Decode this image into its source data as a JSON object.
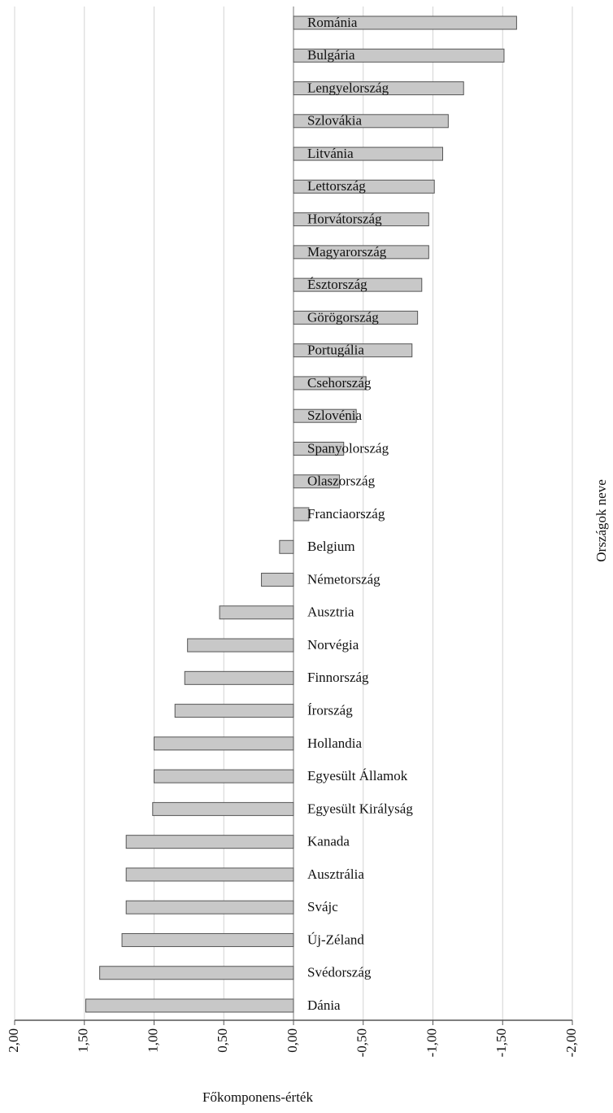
{
  "chart_data": {
    "type": "bar",
    "orientation": "horizontal",
    "x_label": "Főkomponens-érték",
    "y_label": "Országok neve",
    "categories": [
      "Románia",
      "Bulgária",
      "Lengyelország",
      "Szlovákia",
      "Litvánia",
      "Lettország",
      "Horvátország",
      "Magyarország",
      "Észtország",
      "Görögország",
      "Portugália",
      "Csehország",
      "Szlovénia",
      "Spanyolország",
      "Olaszország",
      "Franciaország",
      "Belgium",
      "Németország",
      "Ausztria",
      "Norvégia",
      "Finnország",
      "Írország",
      "Hollandia",
      "Egyesült Államok",
      "Egyesült Királyság",
      "Kanada",
      "Ausztrália",
      "Svájc",
      "Új-Zéland",
      "Svédország",
      "Dánia"
    ],
    "values": [
      -1.6,
      -1.51,
      -1.22,
      -1.11,
      -1.07,
      -1.01,
      -0.97,
      -0.97,
      -0.92,
      -0.89,
      -0.85,
      -0.52,
      -0.45,
      -0.36,
      -0.33,
      -0.11,
      0.1,
      0.23,
      0.53,
      0.76,
      0.78,
      0.85,
      1.0,
      1.0,
      1.01,
      1.2,
      1.2,
      1.2,
      1.23,
      1.39,
      1.49
    ],
    "color": "#c8c8c8",
    "xlim": [
      2,
      -2
    ],
    "xticks": [
      {
        "value": 2,
        "label": "2,00"
      },
      {
        "value": 1.5,
        "label": "1,50"
      },
      {
        "value": 1,
        "label": "1,00"
      },
      {
        "value": 0.5,
        "label": "0,50"
      },
      {
        "value": 0,
        "label": "0,00"
      },
      {
        "value": -0.5,
        "label": "-0,50"
      },
      {
        "value": -1,
        "label": "-1,00"
      },
      {
        "value": -1.5,
        "label": "-1,50"
      },
      {
        "value": -2,
        "label": "-2,00"
      }
    ],
    "grid": true
  }
}
